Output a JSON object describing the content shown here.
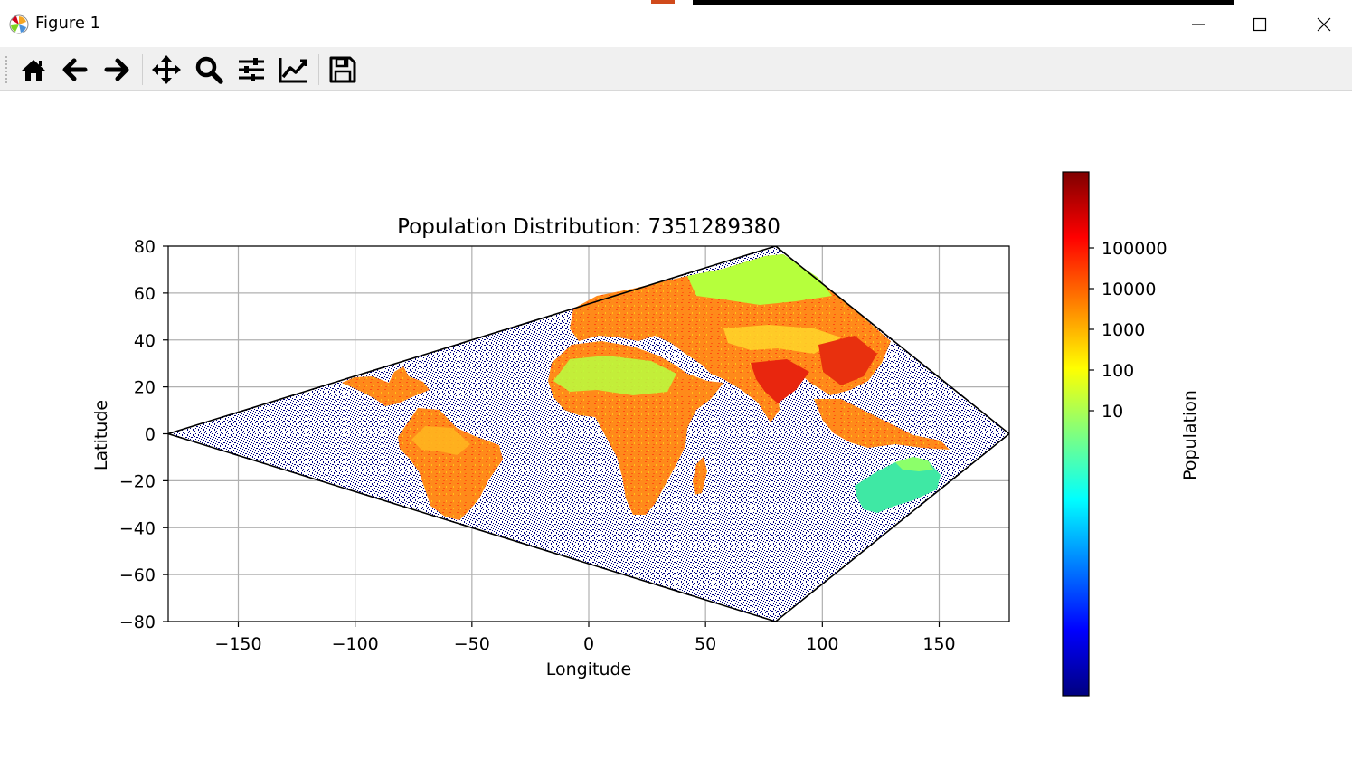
{
  "window": {
    "title": "Figure 1"
  },
  "toolbar": {
    "buttons": [
      {
        "name": "home-button",
        "icon": "home-icon"
      },
      {
        "name": "back-button",
        "icon": "arrow-left-icon"
      },
      {
        "name": "forward-button",
        "icon": "arrow-right-icon"
      },
      {
        "name": "pan-button",
        "icon": "move-icon"
      },
      {
        "name": "zoom-button",
        "icon": "magnifier-icon"
      },
      {
        "name": "configure-subplots-button",
        "icon": "sliders-icon"
      },
      {
        "name": "edit-axes-button",
        "icon": "line-chart-icon"
      },
      {
        "name": "save-button",
        "icon": "floppy-disk-icon"
      }
    ]
  },
  "chart_data": {
    "type": "heatmap",
    "title": "Population Distribution: 7351289380",
    "xlabel": "Longitude",
    "ylabel": "Latitude",
    "xlim": [
      -180,
      180
    ],
    "ylim": [
      -80,
      80
    ],
    "xticks": [
      -150,
      -100,
      -50,
      0,
      50,
      100,
      150
    ],
    "yticks": [
      80,
      60,
      40,
      20,
      0,
      -20,
      -40,
      -60,
      -80
    ],
    "grid": true,
    "projection_outline": [
      [
        -180,
        0
      ],
      [
        80,
        80
      ],
      [
        180,
        0
      ],
      [
        80,
        -80
      ]
    ],
    "colormap": "jet",
    "colorbar": {
      "label": "Population",
      "scale": "log",
      "ticks": [
        10,
        100,
        1000,
        10000,
        100000
      ],
      "tick_labels": [
        "10",
        "100",
        "1000",
        "10000",
        "100000"
      ],
      "colors": [
        "#00007f",
        "#0000ff",
        "#007fff",
        "#00ffff",
        "#7fff7f",
        "#ffff00",
        "#ff7f00",
        "#ff0000",
        "#7f0000"
      ]
    },
    "ocean_color": "#000080"
  }
}
